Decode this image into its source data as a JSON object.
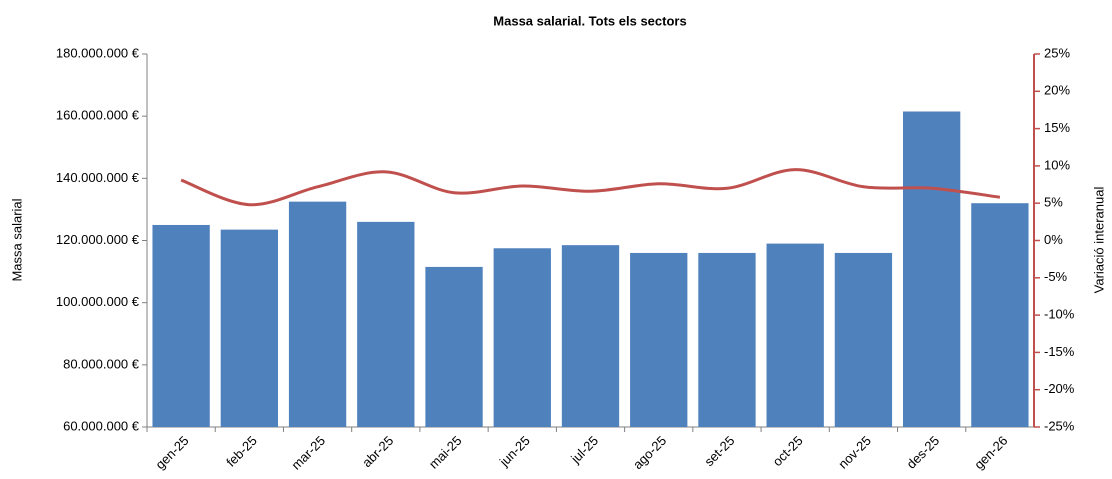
{
  "chart_data": {
    "type": "bar_line",
    "title": "Massa salarial. Tots els sectors",
    "y_label": "Massa salarial",
    "y2_label": "Variació interanual",
    "categories": [
      "gen-25",
      "feb-25",
      "mar-25",
      "abr-25",
      "mai-25",
      "jun-25",
      "jul-25",
      "ago-25",
      "set-25",
      "oct-25",
      "nov-25",
      "des-25",
      "gen-26"
    ],
    "series": [
      {
        "name": "Massa salarial",
        "type": "bar",
        "color": "#4f81bd",
        "axis": "y",
        "values": [
          125000000,
          123500000,
          132500000,
          126000000,
          111500000,
          117500000,
          118500000,
          116000000,
          116000000,
          119000000,
          116000000,
          161500000,
          132000000
        ]
      },
      {
        "name": "Variació interanual",
        "type": "line",
        "color": "#c0504d",
        "axis": "y2",
        "values": [
          8.1,
          4.8,
          7.2,
          9.2,
          6.4,
          7.3,
          6.6,
          7.6,
          7.0,
          9.5,
          7.2,
          7.0,
          5.8
        ]
      }
    ],
    "ylim": [
      60000000,
      180000000
    ],
    "yticks": [
      {
        "value": 60000000,
        "label": "60.000.000 €"
      },
      {
        "value": 80000000,
        "label": "80.000.000 €"
      },
      {
        "value": 100000000,
        "label": "100.000.000 €"
      },
      {
        "value": 120000000,
        "label": "120.000.000 €"
      },
      {
        "value": 140000000,
        "label": "140.000.000 €"
      },
      {
        "value": 160000000,
        "label": "160.000.000 €"
      },
      {
        "value": 180000000,
        "label": "180.000.000 €"
      }
    ],
    "y2lim": [
      -25,
      25
    ],
    "y2ticks": [
      {
        "value": -25,
        "label": "-25%"
      },
      {
        "value": -20,
        "label": "-20%"
      },
      {
        "value": -15,
        "label": "-15%"
      },
      {
        "value": -10,
        "label": "-10%"
      },
      {
        "value": -5,
        "label": "-5%"
      },
      {
        "value": 0,
        "label": "0%"
      },
      {
        "value": 5,
        "label": "5%"
      },
      {
        "value": 10,
        "label": "10%"
      },
      {
        "value": 15,
        "label": "15%"
      },
      {
        "value": 20,
        "label": "20%"
      },
      {
        "value": 25,
        "label": "25%"
      }
    ],
    "grid": false
  }
}
